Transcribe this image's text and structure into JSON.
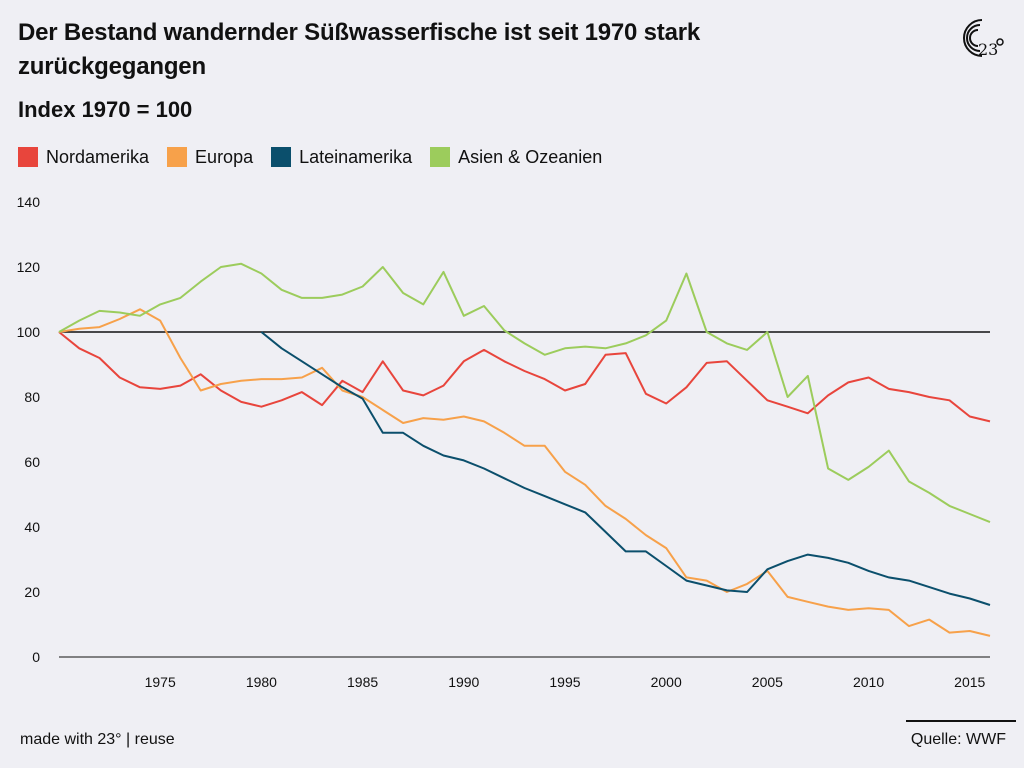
{
  "header": {
    "title": "Der Bestand wandernder Süßwasserfische ist seit 1970 stark zurückgegangen",
    "subtitle": "Index 1970 = 100"
  },
  "footer": {
    "left": "made with 23° | reuse",
    "right": "Quelle: WWF"
  },
  "colors": {
    "Nordamerika": "#e8453c",
    "Europa": "#f7a14a",
    "Lateinamerika": "#0b4f6c",
    "Asien & Ozeanien": "#9ccc5c"
  },
  "chart_data": {
    "type": "line",
    "x_ticks": [
      1975,
      1980,
      1985,
      1990,
      1995,
      2000,
      2005,
      2010,
      2015
    ],
    "y_ticks": [
      0,
      20,
      40,
      60,
      80,
      100,
      120,
      140
    ],
    "xlim": [
      1970,
      2016
    ],
    "ylim": [
      0,
      140
    ],
    "reference_line": 100,
    "series": [
      {
        "name": "Nordamerika",
        "color": "#e8453c",
        "x": [
          1970,
          1971,
          1972,
          1973,
          1974,
          1975,
          1976,
          1977,
          1978,
          1979,
          1980,
          1981,
          1982,
          1983,
          1984,
          1985,
          1986,
          1987,
          1988,
          1989,
          1990,
          1991,
          1992,
          1993,
          1994,
          1995,
          1996,
          1997,
          1998,
          1999,
          2000,
          2001,
          2002,
          2003,
          2004,
          2005,
          2006,
          2007,
          2008,
          2009,
          2010,
          2011,
          2012,
          2013,
          2014,
          2015,
          2016
        ],
        "y": [
          100,
          95,
          92,
          86,
          83,
          82.5,
          83.5,
          87,
          82,
          78.5,
          77,
          79,
          81.5,
          77.5,
          85,
          81.5,
          91,
          82,
          80.5,
          83.5,
          91,
          94.5,
          91,
          88,
          85.5,
          82,
          84,
          93,
          93.5,
          81,
          78,
          83,
          90.5,
          91,
          85,
          79,
          77,
          75,
          80.5,
          84.5,
          86,
          82.5,
          81.5,
          80,
          79,
          74,
          72.5
        ]
      },
      {
        "name": "Europa",
        "color": "#f7a14a",
        "x": [
          1970,
          1971,
          1972,
          1973,
          1974,
          1975,
          1976,
          1977,
          1978,
          1979,
          1980,
          1981,
          1982,
          1983,
          1984,
          1985,
          1986,
          1987,
          1988,
          1989,
          1990,
          1991,
          1992,
          1993,
          1994,
          1995,
          1996,
          1997,
          1998,
          1999,
          2000,
          2001,
          2002,
          2003,
          2004,
          2005,
          2006,
          2007,
          2008,
          2009,
          2010,
          2011,
          2012,
          2013,
          2014,
          2015,
          2016
        ],
        "y": [
          100,
          101,
          101.5,
          104,
          107,
          103.5,
          92,
          82,
          84,
          85,
          85.5,
          85.5,
          86,
          89,
          82,
          80,
          76,
          72,
          73.5,
          73,
          74,
          72.5,
          69,
          65,
          65,
          57,
          53,
          46.5,
          42.5,
          37.5,
          33.5,
          24.5,
          23.5,
          20,
          22.5,
          26.5,
          18.5,
          17,
          15.5,
          14.5,
          15,
          14.5,
          9.5,
          11.5,
          7.5,
          8,
          6.5
        ]
      },
      {
        "name": "Lateinamerika",
        "color": "#0b4f6c",
        "x": [
          1980,
          1981,
          1982,
          1983,
          1984,
          1985,
          1986,
          1987,
          1988,
          1989,
          1990,
          1991,
          1992,
          1993,
          1994,
          1995,
          1996,
          1997,
          1998,
          1999,
          2000,
          2001,
          2002,
          2003,
          2004,
          2005,
          2006,
          2007,
          2008,
          2009,
          2010,
          2011,
          2012,
          2013,
          2014,
          2015,
          2016
        ],
        "y": [
          100,
          95,
          91,
          87,
          83,
          79.5,
          69,
          69,
          65,
          62,
          60.5,
          58,
          55,
          52,
          49.5,
          47,
          44.5,
          38.5,
          32.5,
          32.5,
          28,
          23.5,
          22,
          20.5,
          20,
          27,
          29.5,
          31.5,
          30.5,
          29,
          26.5,
          24.5,
          23.5,
          21.5,
          19.5,
          18,
          16
        ]
      },
      {
        "name": "Asien & Ozeanien",
        "color": "#9ccc5c",
        "x": [
          1970,
          1971,
          1972,
          1973,
          1974,
          1975,
          1976,
          1977,
          1978,
          1979,
          1980,
          1981,
          1982,
          1983,
          1984,
          1985,
          1986,
          1987,
          1988,
          1989,
          1990,
          1991,
          1992,
          1993,
          1994,
          1995,
          1996,
          1997,
          1998,
          1999,
          2000,
          2001,
          2002,
          2003,
          2004,
          2005,
          2006,
          2007,
          2008,
          2009,
          2010,
          2011,
          2012,
          2013,
          2014,
          2015,
          2016
        ],
        "y": [
          100,
          103.5,
          106.5,
          106,
          105,
          108.5,
          110.5,
          115.5,
          120,
          121,
          118,
          113,
          110.5,
          110.5,
          111.5,
          114,
          120,
          112,
          108.5,
          118.5,
          105,
          108,
          100.5,
          96.5,
          93,
          95,
          95.5,
          95,
          96.5,
          99,
          103.5,
          118,
          100,
          96.5,
          94.5,
          100,
          80,
          86.5,
          58,
          54.5,
          58.5,
          63.5,
          54,
          50.5,
          46.5,
          44,
          41.5
        ]
      }
    ]
  }
}
